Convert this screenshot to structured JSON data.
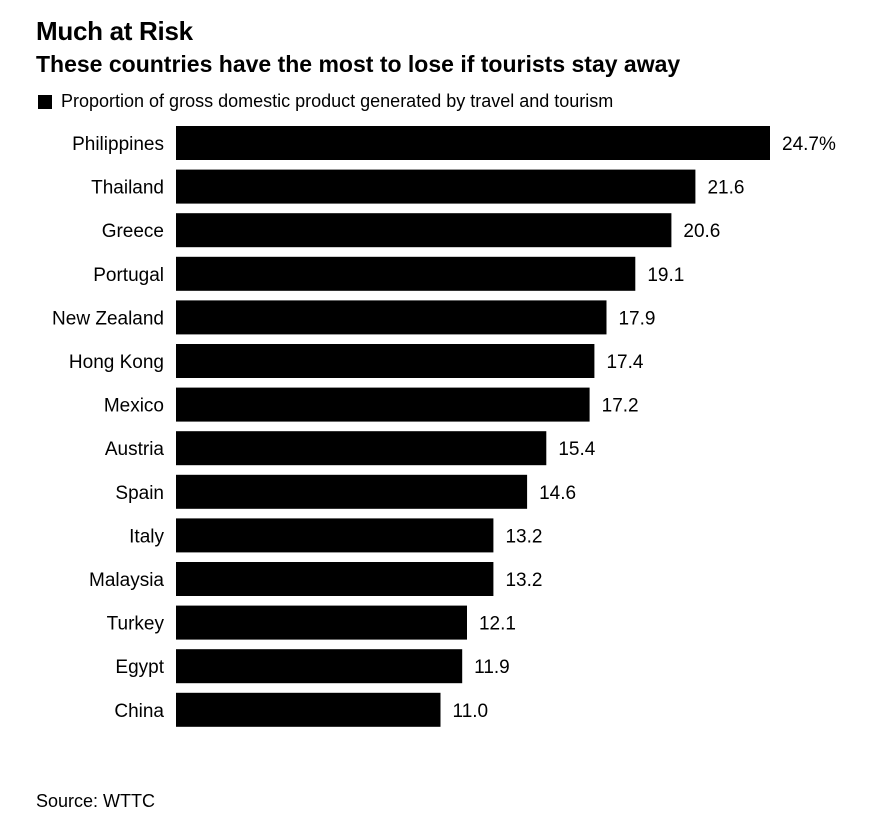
{
  "title": "Much at Risk",
  "subtitle": "These countries have the most to lose if tourists stay away",
  "legend": {
    "label": "Proportion of gross domestic product generated by travel and tourism"
  },
  "source": "Source: WTTC",
  "colors": {
    "bar": "#000000",
    "text": "#000000",
    "background": "#ffffff"
  },
  "chart_data": {
    "type": "bar",
    "orientation": "horizontal",
    "title": "Much at Risk",
    "subtitle": "These countries have the most to lose if tourists stay away",
    "xlabel": "",
    "ylabel": "",
    "categories": [
      "Philippines",
      "Thailand",
      "Greece",
      "Portugal",
      "New Zealand",
      "Hong Kong",
      "Mexico",
      "Austria",
      "Spain",
      "Italy",
      "Malaysia",
      "Turkey",
      "Egypt",
      "China"
    ],
    "series": [
      {
        "name": "Proportion of gross domestic product generated by travel and tourism",
        "values": [
          24.7,
          21.6,
          20.6,
          19.1,
          17.9,
          17.4,
          17.2,
          15.4,
          14.6,
          13.2,
          13.2,
          12.1,
          11.9,
          11.0
        ],
        "labels": [
          "24.7%",
          "21.6",
          "20.6",
          "19.1",
          "17.9",
          "17.4",
          "17.2",
          "15.4",
          "14.6",
          "13.2",
          "13.2",
          "12.1",
          "11.9",
          "11.0"
        ]
      }
    ],
    "xlim": [
      0,
      24.7
    ],
    "grid": false,
    "legend_position": "top-left"
  }
}
